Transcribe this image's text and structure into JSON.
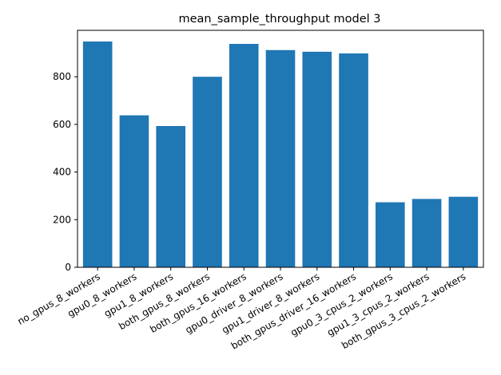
{
  "chart_data": {
    "type": "bar",
    "title": "mean_sample_throughput model 3",
    "xlabel": "",
    "ylabel": "",
    "categories": [
      "no_gpus_8_workers",
      "gpu0_8_workers",
      "gpu1_8_workers",
      "both_gpus_8_workers",
      "both_gpus_16_workers",
      "gpu0_driver_8_workers",
      "gpu1_driver_8_workers",
      "both_gpus_driver_16_workers",
      "gpu0_3_cpus_2_workers",
      "gpu1_3_cpus_2_workers",
      "both_gpus_3_cpus_2_workers"
    ],
    "values": [
      948,
      638,
      593,
      800,
      938,
      912,
      905,
      898,
      273,
      287,
      296
    ],
    "ylim": [
      0,
      995
    ],
    "yticks": [
      0,
      200,
      400,
      600,
      800
    ],
    "bar_color": "#1f77b4",
    "grid": false,
    "legend": "none"
  }
}
